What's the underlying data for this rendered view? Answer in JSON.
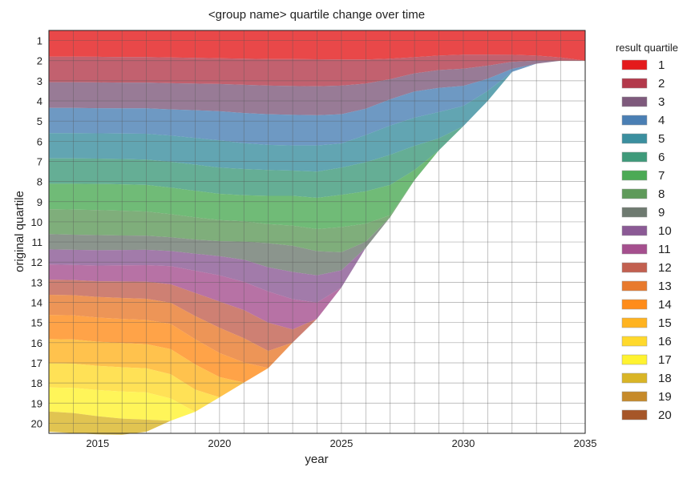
{
  "chart_data": {
    "type": "area",
    "title": "<group name> quartile change over time",
    "xlabel": "year",
    "ylabel": "original quartile",
    "xlim": [
      2013,
      2035
    ],
    "xticks": [
      2015,
      2020,
      2025,
      2030,
      2035
    ],
    "ylim": [
      20.5,
      0.5
    ],
    "yticks": [
      1,
      2,
      3,
      4,
      5,
      6,
      7,
      8,
      9,
      10,
      11,
      12,
      13,
      14,
      15,
      16,
      17,
      18,
      19,
      20
    ],
    "grid": true,
    "legend": {
      "title": "result quartile",
      "placement": "right",
      "labels": [
        "1",
        "2",
        "3",
        "4",
        "5",
        "6",
        "7",
        "8",
        "9",
        "10",
        "11",
        "12",
        "13",
        "14",
        "15",
        "16",
        "17",
        "18",
        "19",
        "20"
      ]
    },
    "x": [
      2013,
      2014,
      2015,
      2016,
      2017,
      2018,
      2019,
      2020,
      2021,
      2022,
      2023,
      2024,
      2025,
      2026,
      2027,
      2028,
      2029,
      2030,
      2031,
      2032,
      2033,
      2034,
      2035
    ],
    "series": [
      {
        "name": "1",
        "color": "#e41a1c",
        "values": [
          1.3,
          1.3,
          1.31,
          1.32,
          1.32,
          1.34,
          1.36,
          1.38,
          1.4,
          1.42,
          1.42,
          1.43,
          1.44,
          1.44,
          1.4,
          1.33,
          1.25,
          1.2,
          1.2,
          1.21,
          1.25,
          1.34,
          1.5
        ]
      },
      {
        "name": "2",
        "color": "#b3394b",
        "values": [
          1.27,
          1.27,
          1.27,
          1.27,
          1.27,
          1.28,
          1.28,
          1.28,
          1.3,
          1.32,
          1.34,
          1.34,
          1.3,
          1.2,
          1.02,
          0.8,
          0.72,
          0.7,
          0.55,
          0.35,
          0.25,
          0.16,
          0
        ]
      },
      {
        "name": "3",
        "color": "#7e5a7c",
        "values": [
          1.28,
          1.28,
          1.28,
          1.28,
          1.28,
          1.3,
          1.32,
          1.35,
          1.4,
          1.42,
          1.43,
          1.44,
          1.42,
          1.25,
          1.0,
          0.9,
          0.88,
          0.85,
          0.65,
          0.35,
          0.15,
          0,
          0
        ]
      },
      {
        "name": "4",
        "color": "#4a7fb4",
        "values": [
          1.25,
          1.25,
          1.25,
          1.25,
          1.26,
          1.3,
          1.38,
          1.45,
          1.5,
          1.52,
          1.52,
          1.5,
          1.45,
          1.3,
          1.3,
          1.3,
          1.2,
          1.0,
          0.6,
          0.15,
          0,
          0,
          0
        ]
      },
      {
        "name": "5",
        "color": "#3b8f9f",
        "values": [
          1.25,
          1.25,
          1.25,
          1.26,
          1.28,
          1.3,
          1.32,
          1.35,
          1.28,
          1.25,
          1.25,
          1.3,
          1.2,
          1.35,
          1.45,
          1.4,
          1.3,
          1.0,
          0.5,
          0,
          0,
          0,
          0
        ]
      },
      {
        "name": "6",
        "color": "#3f9a7a",
        "values": [
          1.26,
          1.26,
          1.26,
          1.26,
          1.26,
          1.28,
          1.3,
          1.3,
          1.3,
          1.28,
          1.25,
          1.3,
          1.35,
          1.45,
          1.5,
          1.2,
          0.6,
          0,
          0,
          0,
          0,
          0,
          0
        ]
      },
      {
        "name": "7",
        "color": "#4caa55",
        "values": [
          1.26,
          1.28,
          1.3,
          1.31,
          1.32,
          1.32,
          1.32,
          1.3,
          1.3,
          1.4,
          1.48,
          1.55,
          1.6,
          1.6,
          1.5,
          0.5,
          0,
          0,
          0,
          0,
          0,
          0,
          0
        ]
      },
      {
        "name": "8",
        "color": "#5f9a5a",
        "values": [
          1.24,
          1.25,
          1.24,
          1.23,
          1.2,
          1.15,
          1.1,
          1.05,
          1.0,
          0.95,
          1.0,
          1.1,
          1.25,
          0.9,
          0.1,
          0,
          0,
          0,
          0,
          0,
          0,
          0,
          0
        ]
      },
      {
        "name": "9",
        "color": "#6e7a70",
        "values": [
          0.76,
          0.75,
          0.75,
          0.72,
          0.7,
          0.68,
          0.7,
          0.75,
          0.9,
          1.2,
          1.3,
          1.2,
          0.9,
          0.3,
          0,
          0,
          0,
          0,
          0,
          0,
          0,
          0,
          0
        ]
      },
      {
        "name": "10",
        "color": "#8b5a95",
        "values": [
          0.75,
          0.75,
          0.76,
          0.76,
          0.76,
          0.75,
          0.85,
          0.95,
          1.1,
          1.2,
          1.35,
          1.35,
          0.85,
          0,
          0,
          0,
          0,
          0,
          0,
          0,
          0,
          0,
          0
        ]
      },
      {
        "name": "11",
        "color": "#a54f8e",
        "values": [
          0.75,
          0.75,
          0.78,
          0.8,
          0.82,
          0.9,
          1.1,
          1.3,
          1.4,
          1.55,
          1.5,
          0.8,
          0,
          0,
          0,
          0,
          0,
          0,
          0,
          0,
          0,
          0,
          0
        ]
      },
      {
        "name": "12",
        "color": "#c26050",
        "values": [
          0.75,
          0.75,
          0.78,
          0.82,
          0.85,
          0.92,
          1.15,
          1.3,
          1.4,
          1.4,
          0.65,
          0,
          0,
          0,
          0,
          0,
          0,
          0,
          0,
          0,
          0,
          0,
          0
        ]
      },
      {
        "name": "13",
        "color": "#e87a2d",
        "values": [
          1.0,
          1.0,
          1.02,
          1.04,
          1.05,
          1.05,
          1.15,
          1.25,
          1.2,
          0.85,
          0,
          0,
          0,
          0,
          0,
          0,
          0,
          0,
          0,
          0,
          0,
          0,
          0
        ]
      },
      {
        "name": "14",
        "color": "#ff8c1a",
        "values": [
          1.2,
          1.2,
          1.2,
          1.2,
          1.2,
          1.25,
          1.25,
          1.2,
          1.0,
          0,
          0,
          0,
          0,
          0,
          0,
          0,
          0,
          0,
          0,
          0,
          0,
          0,
          0
        ]
      },
      {
        "name": "15",
        "color": "#ffb320",
        "values": [
          1.2,
          1.2,
          1.2,
          1.2,
          1.2,
          1.25,
          1.25,
          1.0,
          0,
          0,
          0,
          0,
          0,
          0,
          0,
          0,
          0,
          0,
          0,
          0,
          0,
          0,
          0
        ]
      },
      {
        "name": "16",
        "color": "#ffd92c",
        "values": [
          1.2,
          1.2,
          1.2,
          1.2,
          1.2,
          1.2,
          1.1,
          0,
          0,
          0,
          0,
          0,
          0,
          0,
          0,
          0,
          0,
          0,
          0,
          0,
          0,
          0,
          0
        ]
      },
      {
        "name": "17",
        "color": "#fff330",
        "values": [
          1.2,
          1.25,
          1.3,
          1.35,
          1.35,
          1.1,
          0,
          0,
          0,
          0,
          0,
          0,
          0,
          0,
          0,
          0,
          0,
          0,
          0,
          0,
          0,
          0,
          0
        ]
      },
      {
        "name": "18",
        "color": "#d9b526",
        "values": [
          1.0,
          1.0,
          0.9,
          0.8,
          0.6,
          0,
          0,
          0,
          0,
          0,
          0,
          0,
          0,
          0,
          0,
          0,
          0,
          0,
          0,
          0,
          0,
          0,
          0
        ]
      },
      {
        "name": "19",
        "color": "#c68a2a",
        "values": [
          0,
          0,
          0,
          0,
          0,
          0,
          0,
          0,
          0,
          0,
          0,
          0,
          0,
          0,
          0,
          0,
          0,
          0,
          0,
          0,
          0,
          0,
          0
        ]
      },
      {
        "name": "20",
        "color": "#a65628",
        "values": [
          0,
          0,
          0,
          0,
          0,
          0,
          0,
          0,
          0,
          0,
          0,
          0,
          0,
          0,
          0,
          0,
          0,
          0,
          0,
          0,
          0,
          0,
          0
        ]
      }
    ]
  }
}
